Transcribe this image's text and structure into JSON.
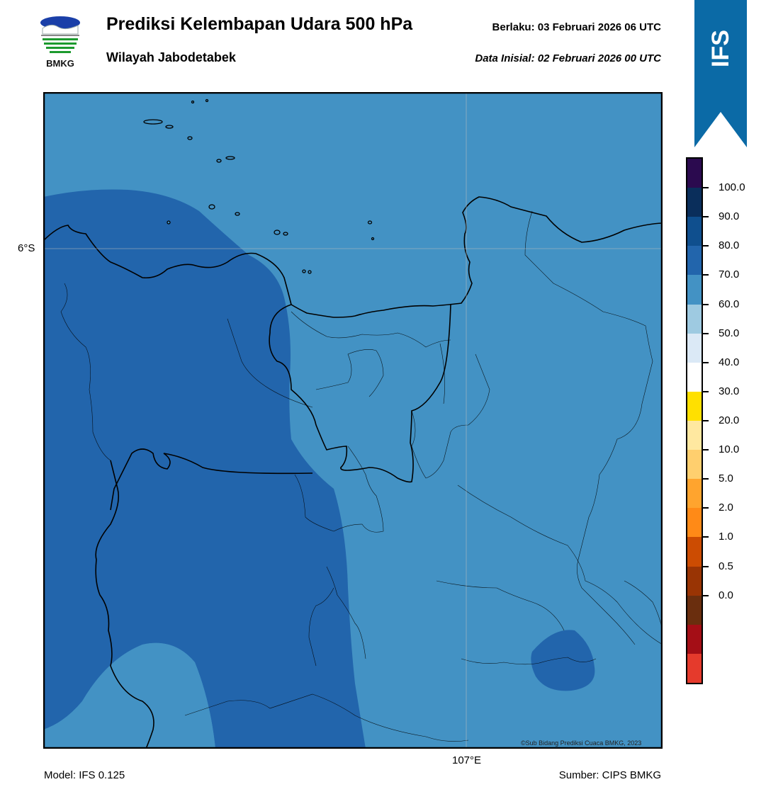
{
  "header": {
    "title": "Prediksi Kelembapan Udara 500 hPa",
    "region": "Wilayah Jabodetabek",
    "valid": "Berlaku:  03 Februari 2026 06 UTC",
    "initial": "Data Inisial:  02 Februari 2026 00 UTC"
  },
  "logo": {
    "text": "BMKG",
    "icon": "bmkg-logo-icon"
  },
  "ribbon": {
    "text": "IFS",
    "color": "#0b6aa6"
  },
  "map": {
    "lat_label": "6°S",
    "lon_label": "107°E",
    "copyright": "©Sub Bidang Prediksi Cuaca BMKG, 2023",
    "fill_colors": {
      "light": "#4392c4",
      "dark": "#2265ac"
    }
  },
  "footer": {
    "model": "Model: IFS 0.125",
    "source": "Sumber: CIPS BMKG"
  },
  "colorbar": {
    "labels": [
      "100.0",
      "90.0",
      "80.0",
      "70.0",
      "60.0",
      "50.0",
      "40.0",
      "30.0",
      "20.0",
      "10.0",
      "5.0",
      "2.0",
      "1.0",
      "0.5",
      "0.0"
    ],
    "colors": [
      "#2b0a4f",
      "#0a2e5b",
      "#0f4f8e",
      "#2265ac",
      "#4392c4",
      "#9ecae1",
      "#dbe9f6",
      "#ffffff",
      "#ffe000",
      "#ffe8a0",
      "#ffcf6e",
      "#ffa42e",
      "#ff8a17",
      "#cc4c02",
      "#993404",
      "#6a2e0e",
      "#a40e16",
      "#e53a2c"
    ]
  }
}
